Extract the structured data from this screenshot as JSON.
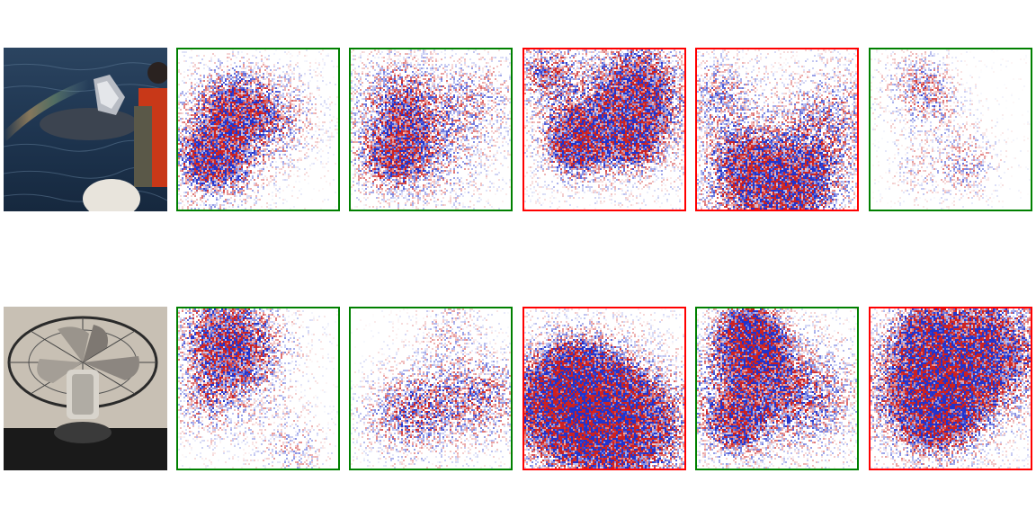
{
  "figure": {
    "rows": [
      {
        "photo": {
          "subject": "whale-watching-photo-icon"
        },
        "maps": [
          {
            "frame_color": "#008000",
            "intensity": 0.55,
            "seed": 11
          },
          {
            "frame_color": "#008000",
            "intensity": 0.5,
            "seed": 23
          },
          {
            "frame_color": "#ff0000",
            "intensity": 0.85,
            "seed": 37
          },
          {
            "frame_color": "#ff0000",
            "intensity": 0.65,
            "seed": 41
          },
          {
            "frame_color": "#008000",
            "intensity": 0.35,
            "seed": 53
          }
        ]
      },
      {
        "photo": {
          "subject": "electric-fan-photo-icon"
        },
        "maps": [
          {
            "frame_color": "#008000",
            "intensity": 0.45,
            "seed": 67
          },
          {
            "frame_color": "#008000",
            "intensity": 0.4,
            "seed": 71
          },
          {
            "frame_color": "#ff0000",
            "intensity": 0.85,
            "seed": 83
          },
          {
            "frame_color": "#008000",
            "intensity": 0.8,
            "seed": 97
          },
          {
            "frame_color": "#ff0000",
            "intensity": 0.8,
            "seed": 101
          }
        ]
      }
    ],
    "colors": {
      "positive": "#cc2222",
      "negative": "#2233cc",
      "neutral": "#ffffff"
    }
  }
}
